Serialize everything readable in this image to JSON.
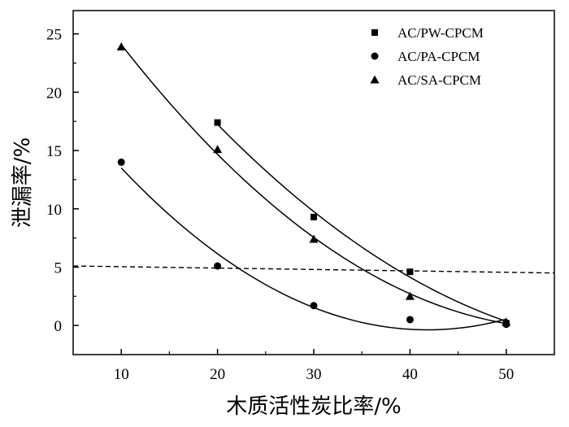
{
  "chart_data": {
    "type": "scatter",
    "xlabel": "木质活性炭比率/%",
    "ylabel": "泄漏率/%",
    "xlim": [
      5,
      55
    ],
    "ylim": [
      -2.5,
      27
    ],
    "xticks": [
      10,
      20,
      30,
      40,
      50
    ],
    "yticks": [
      0,
      5,
      10,
      15,
      20,
      25
    ],
    "legend_position": "top-right",
    "series": [
      {
        "name": "AC/PW-CPCM",
        "marker": "square",
        "x": [
          20,
          30,
          40,
          50
        ],
        "y": [
          17.4,
          9.3,
          4.6,
          0.2
        ],
        "fit": "quadratic"
      },
      {
        "name": "AC/PA-CPCM",
        "marker": "circle",
        "x": [
          10,
          20,
          30,
          40,
          50
        ],
        "y": [
          14.0,
          5.1,
          1.7,
          0.5,
          0.1
        ],
        "fit": "quadratic"
      },
      {
        "name": "AC/SA-CPCM",
        "marker": "triangle",
        "x": [
          10,
          20,
          30,
          40,
          50
        ],
        "y": [
          23.9,
          15.1,
          7.4,
          2.5,
          0.3
        ],
        "fit": "quadratic"
      }
    ],
    "reference_line": {
      "style": "dashed",
      "x": [
        5,
        55
      ],
      "y": [
        5.1,
        4.5
      ]
    }
  }
}
